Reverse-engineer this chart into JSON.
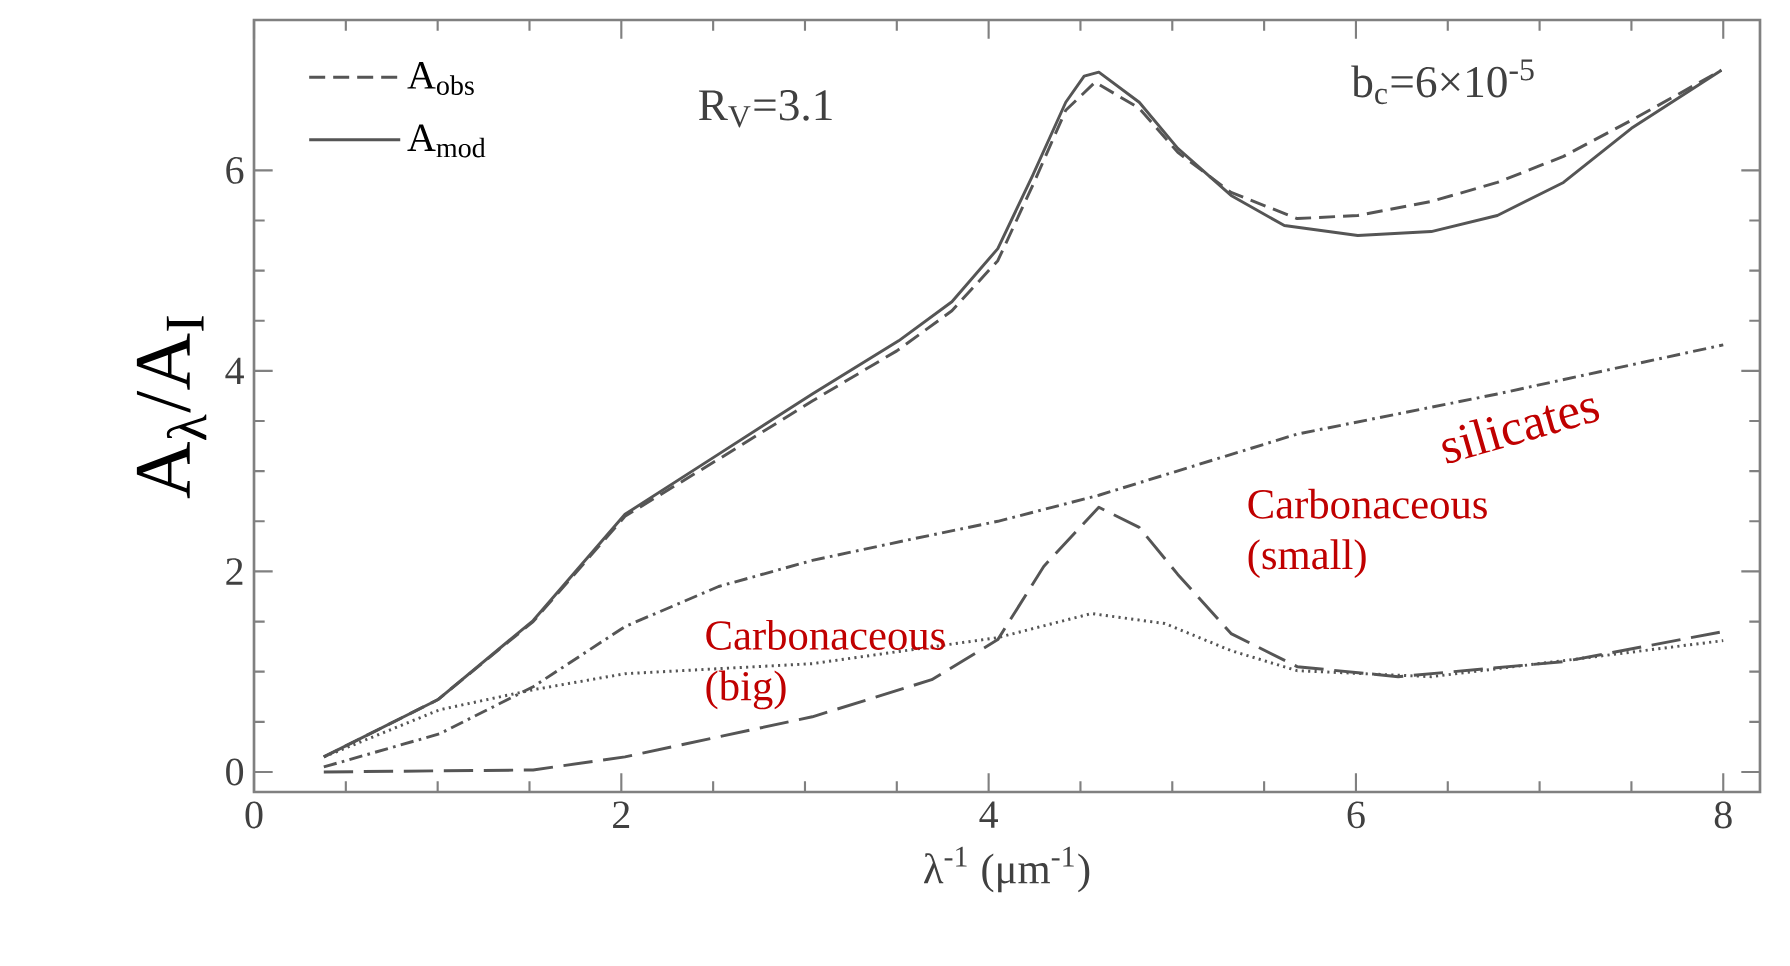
{
  "chart_data": {
    "type": "line",
    "xlabel": "λ$^{-1}$ (μm$^{-1}$)",
    "ylabel": "A$_{λ}$/A$_{I}$",
    "xlim": [
      0,
      8.2
    ],
    "ylim": [
      -0.2,
      7.5
    ],
    "xticks": [
      0,
      2,
      4,
      6,
      8
    ],
    "yticks": [
      0,
      2,
      4,
      6
    ],
    "legend": "top left",
    "series": [
      {
        "name": "A$_{obs}$",
        "color": "#555555",
        "line_style": "dashed",
        "x": [
          0.38,
          1.0,
          1.52,
          2.02,
          2.53,
          3.04,
          3.5,
          3.8,
          4.05,
          4.24,
          4.42,
          4.58,
          4.82,
          5.03,
          5.32,
          5.68,
          6.01,
          6.41,
          6.77,
          7.13,
          7.5,
          7.99
        ],
        "values": [
          0.15,
          0.72,
          1.5,
          2.55,
          3.12,
          3.7,
          4.2,
          4.6,
          5.1,
          5.85,
          6.6,
          6.88,
          6.62,
          6.18,
          5.78,
          5.52,
          5.55,
          5.69,
          5.88,
          6.14,
          6.5,
          7.0
        ]
      },
      {
        "name": "A$_{mod}$",
        "color": "#555555",
        "line_style": "solid",
        "x": [
          0.38,
          1.0,
          1.52,
          2.02,
          2.53,
          3.04,
          3.51,
          3.8,
          4.05,
          4.24,
          4.42,
          4.52,
          4.6,
          4.82,
          5.03,
          5.32,
          5.61,
          6.01,
          6.41,
          6.77,
          7.13,
          7.5,
          7.99
        ],
        "values": [
          0.15,
          0.72,
          1.51,
          2.57,
          3.17,
          3.77,
          4.3,
          4.69,
          5.22,
          5.95,
          6.68,
          6.94,
          6.98,
          6.68,
          6.22,
          5.75,
          5.45,
          5.35,
          5.39,
          5.55,
          5.88,
          6.42,
          7.0
        ]
      },
      {
        "color": "#555555",
        "line_style": "dashdot",
        "x": [
          0.38,
          1.01,
          1.52,
          2.02,
          2.53,
          3.04,
          3.55,
          4.05,
          4.6,
          5.68,
          6.77,
          8.0
        ],
        "values": [
          0.05,
          0.38,
          0.85,
          1.45,
          1.85,
          2.11,
          2.31,
          2.5,
          2.76,
          3.37,
          3.77,
          4.26
        ]
      },
      {
        "color": "#555555",
        "line_style": "dotted",
        "x": [
          0.38,
          1.01,
          1.52,
          2.02,
          3.04,
          4.05,
          4.56,
          4.96,
          5.32,
          5.68,
          6.41,
          7.13,
          8.0
        ],
        "values": [
          0.15,
          0.62,
          0.82,
          0.98,
          1.08,
          1.34,
          1.58,
          1.48,
          1.21,
          1.01,
          0.95,
          1.11,
          1.31
        ]
      },
      {
        "color": "#555555",
        "line_style": "longdashed",
        "x": [
          0.38,
          1.52,
          2.02,
          3.04,
          3.69,
          4.05,
          4.3,
          4.6,
          4.82,
          5.03,
          5.32,
          5.68,
          6.23,
          7.13,
          8.0
        ],
        "values": [
          0.0,
          0.02,
          0.15,
          0.55,
          0.92,
          1.32,
          2.05,
          2.64,
          2.44,
          1.97,
          1.38,
          1.05,
          0.95,
          1.1,
          1.4
        ]
      }
    ],
    "annotations": [
      "R$_{V}$=3.1",
      "b$_{c}$=6×10$^{-5}$",
      "silicates",
      "Carbonaceous (big)",
      "Carbonaceous (small)"
    ]
  }
}
